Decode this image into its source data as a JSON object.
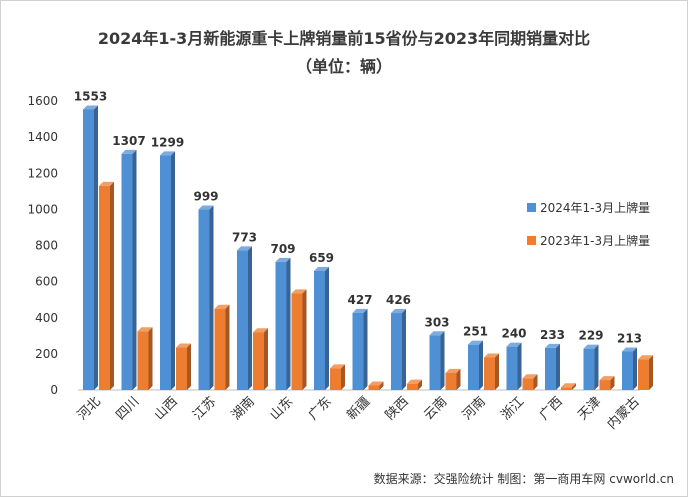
{
  "chart_data": {
    "type": "bar",
    "title": "2024年1-3月新能源重卡上牌销量前15省份与2023年同期销量对比",
    "subtitle": "（单位：辆）",
    "categories": [
      "河北",
      "四川",
      "山西",
      "江苏",
      "湖南",
      "山东",
      "广东",
      "新疆",
      "陕西",
      "云南",
      "河南",
      "浙江",
      "广西",
      "天津",
      "内蒙古"
    ],
    "series": [
      {
        "name": "2024年1-3月上牌量",
        "values": [
          1553,
          1307,
          1299,
          999,
          773,
          709,
          659,
          427,
          426,
          303,
          251,
          240,
          233,
          229,
          213
        ],
        "color": "#4f8fd4"
      },
      {
        "name": "2023年1-3月上牌量",
        "values": [
          1130,
          325,
          235,
          450,
          320,
          535,
          120,
          25,
          35,
          95,
          180,
          65,
          15,
          55,
          170
        ],
        "color": "#ed7d31"
      }
    ],
    "ylim": [
      0,
      1600
    ],
    "yticks": [
      0,
      200,
      400,
      600,
      800,
      1000,
      1200,
      1400,
      1600
    ],
    "grid": false,
    "legend_position": "right",
    "data_labels_series": 0
  },
  "source_text": "数据来源：交强险统计  制图：第一商用车网 cvworld.cn"
}
